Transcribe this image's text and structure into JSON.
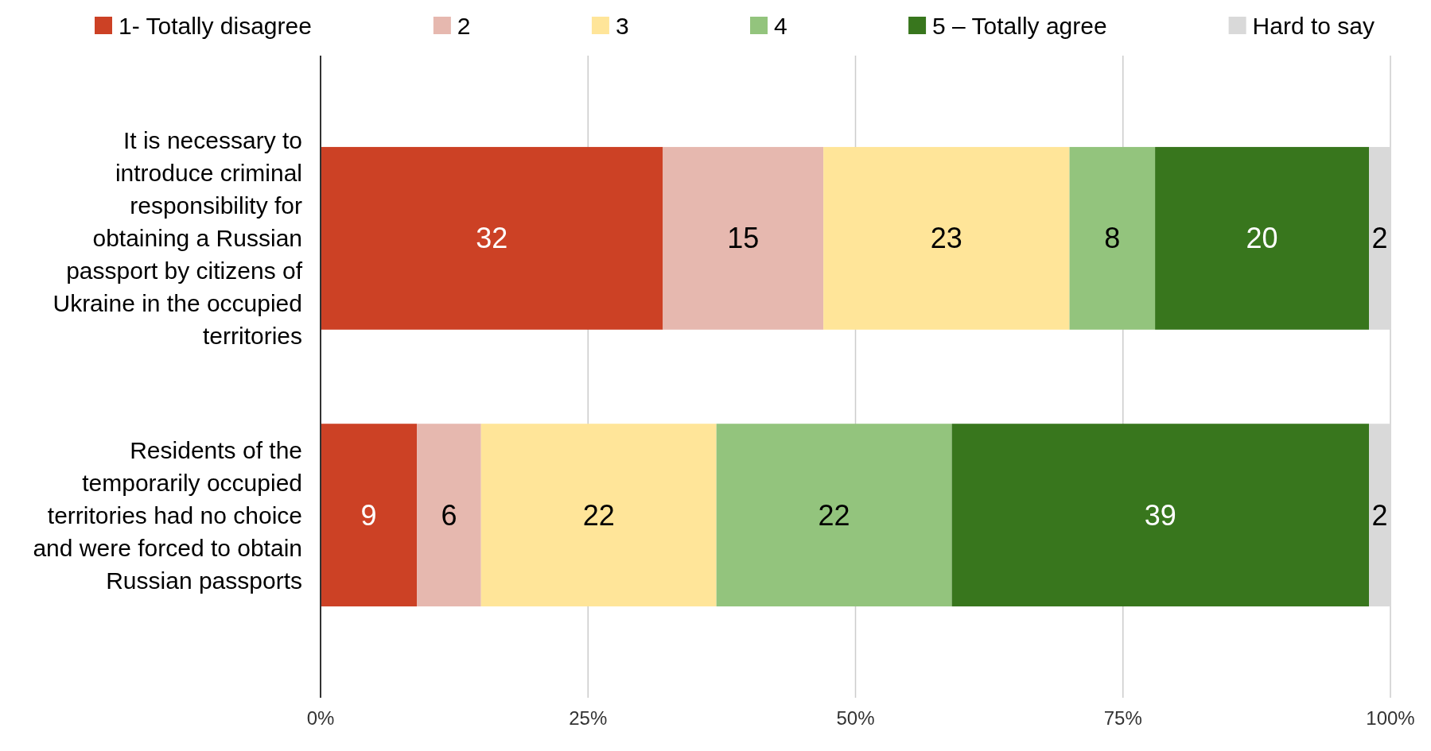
{
  "chart_data": {
    "type": "bar",
    "orientation": "horizontal",
    "stacked": true,
    "categories": [
      "It is necessary to introduce criminal responsibility for obtaining a Russian passport by citizens of Ukraine in the occupied territories",
      "Residents of the temporarily occupied territories had no choice and were forced to obtain Russian passports"
    ],
    "series": [
      {
        "name": "1- Totally disagree",
        "color": "#cc4125",
        "values": [
          32,
          9
        ]
      },
      {
        "name": "2",
        "color": "#e6b8af",
        "values": [
          15,
          6
        ]
      },
      {
        "name": "3",
        "color": "#ffe599",
        "values": [
          23,
          22
        ]
      },
      {
        "name": "4",
        "color": "#93c47d",
        "values": [
          8,
          22
        ]
      },
      {
        "name": "5 – Totally agree",
        "color": "#38761d",
        "values": [
          20,
          39
        ]
      },
      {
        "name": "Hard to say",
        "color": "#d9d9d9",
        "values": [
          2,
          2
        ]
      }
    ],
    "xlim": [
      0,
      100
    ],
    "xticks": [
      {
        "value": 0,
        "label": "0%"
      },
      {
        "value": 25,
        "label": "25%"
      },
      {
        "value": 50,
        "label": "50%"
      },
      {
        "value": 75,
        "label": "75%"
      },
      {
        "value": 100,
        "label": "100%"
      }
    ],
    "grid": "x",
    "legend": "top",
    "data_labels": true
  }
}
